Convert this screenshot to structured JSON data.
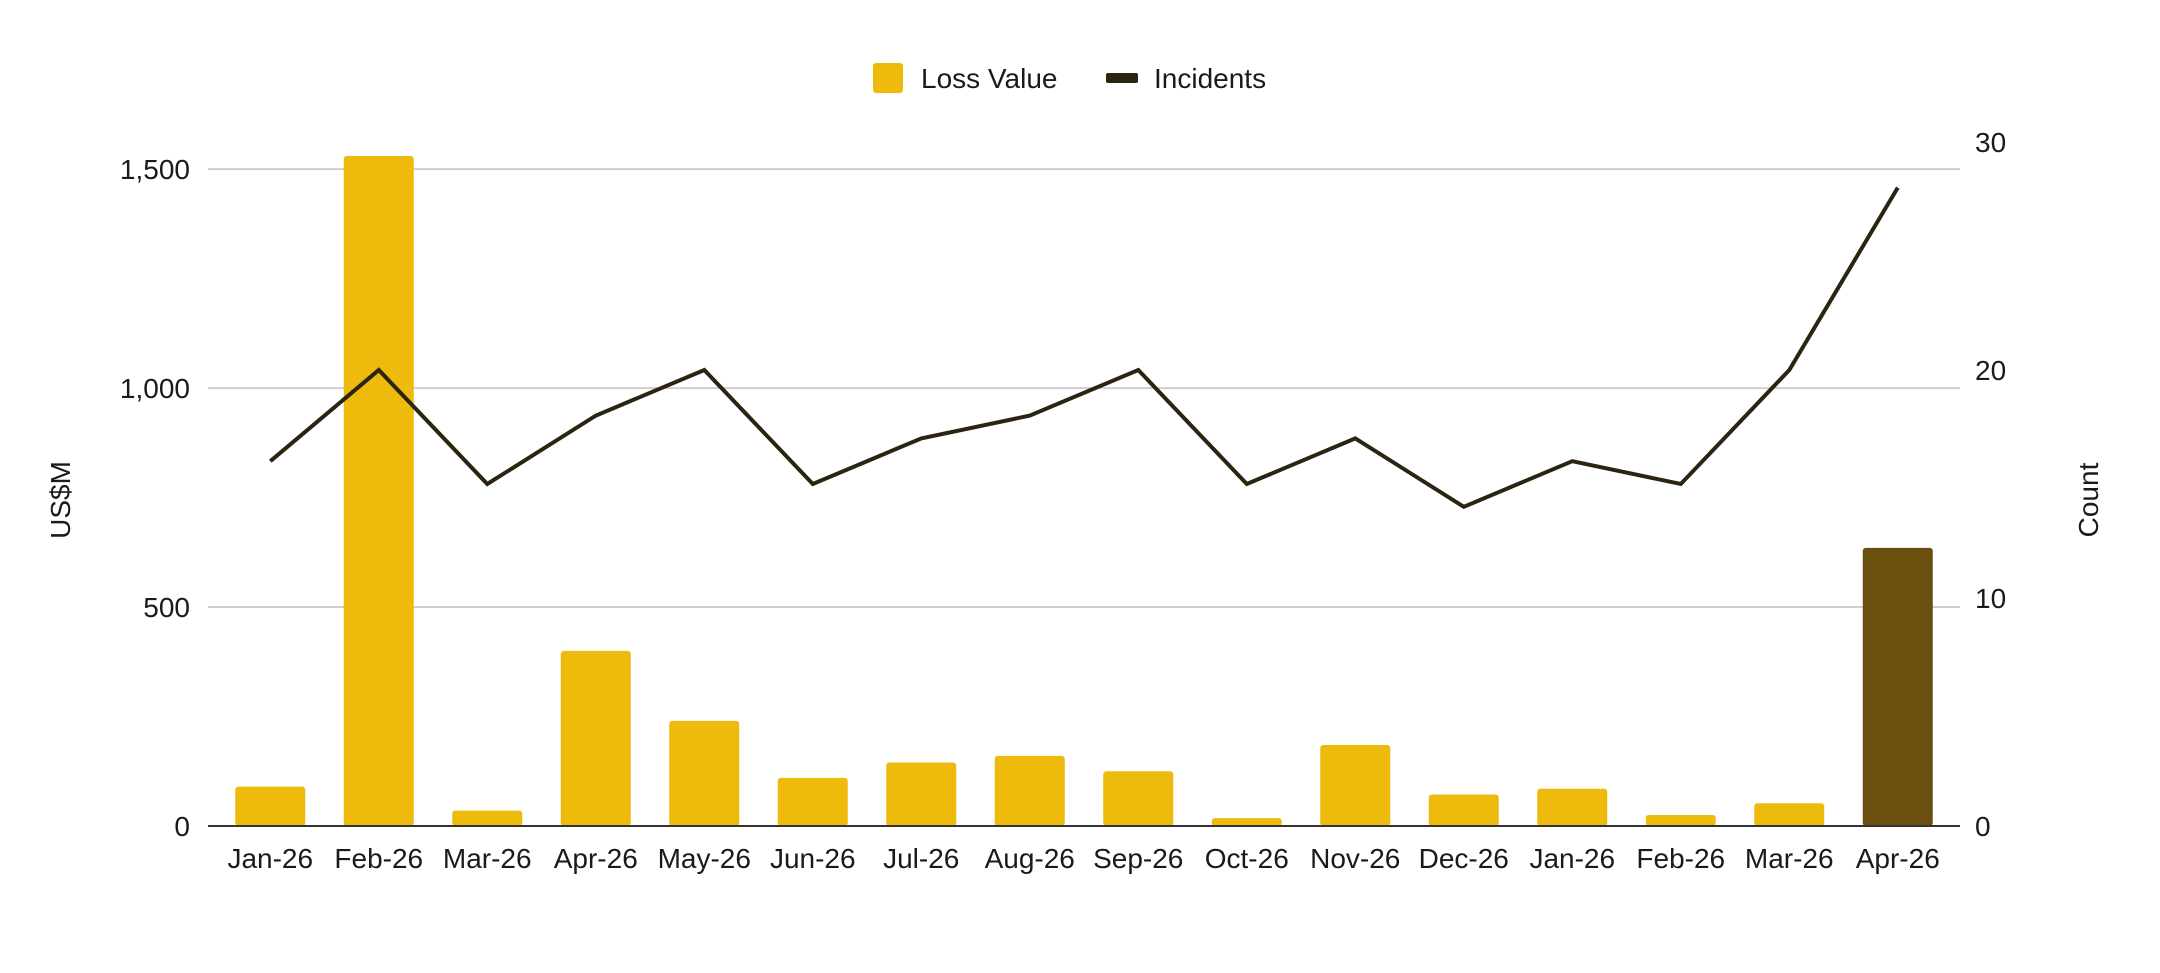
{
  "chart_data": {
    "type": "bar",
    "categories": [
      "Jan-26",
      "Feb-26",
      "Mar-26",
      "Apr-26",
      "May-26",
      "Jun-26",
      "Jul-26",
      "Aug-26",
      "Sep-26",
      "Oct-26",
      "Nov-26",
      "Dec-26",
      "Jan-26",
      "Feb-26",
      "Mar-26",
      "Apr-26"
    ],
    "series": [
      {
        "name": "Loss Value",
        "type": "bar",
        "axis": "left",
        "color": "#EEBA0B",
        "highlight_color": "#6B4F0E",
        "highlight_index": 15,
        "values": [
          90,
          1530,
          35,
          400,
          240,
          110,
          145,
          160,
          125,
          18,
          185,
          72,
          85,
          25,
          52,
          635
        ]
      },
      {
        "name": "Incidents",
        "type": "line",
        "axis": "right",
        "color": "#2B2410",
        "values": [
          16,
          20,
          15,
          18,
          20,
          15,
          17,
          18,
          20,
          15,
          17,
          14,
          16,
          15,
          20,
          28
        ]
      }
    ],
    "ylabel": "US$M",
    "y2label": "Count",
    "ylim": [
      0,
      1530
    ],
    "y2lim": [
      0,
      30
    ],
    "yticks": [
      0,
      500,
      1000,
      1500
    ],
    "yticks_labels": [
      "0",
      "500",
      "1,000",
      "1,500"
    ],
    "y2ticks": [
      0,
      10,
      20,
      30
    ],
    "y2ticks_labels": [
      "0",
      "10",
      "20",
      "30"
    ],
    "grid": true,
    "legend": "top-center"
  }
}
